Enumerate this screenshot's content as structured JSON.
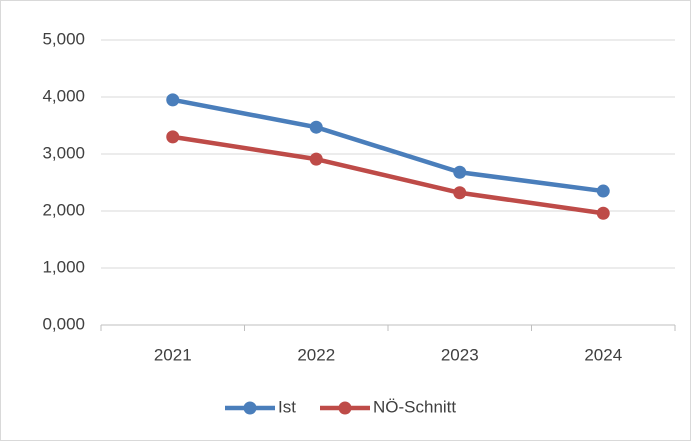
{
  "chart_data": {
    "type": "line",
    "categories": [
      "2021",
      "2022",
      "2023",
      "2024"
    ],
    "series": [
      {
        "name": "Ist",
        "color": "#4a7ebb",
        "values": [
          3.95,
          3.47,
          2.68,
          2.35
        ]
      },
      {
        "name": "NÖ-Schnitt",
        "color": "#be4b48",
        "values": [
          3.3,
          2.91,
          2.32,
          1.96
        ]
      }
    ],
    "ylim": [
      0,
      5
    ],
    "yticks": [
      {
        "value": 0,
        "label": "0,000"
      },
      {
        "value": 1,
        "label": "1,000"
      },
      {
        "value": 2,
        "label": "2,000"
      },
      {
        "value": 3,
        "label": "3,000"
      },
      {
        "value": 4,
        "label": "4,000"
      },
      {
        "value": 5,
        "label": "5,000"
      }
    ],
    "grid": true,
    "legend": "bottom"
  }
}
